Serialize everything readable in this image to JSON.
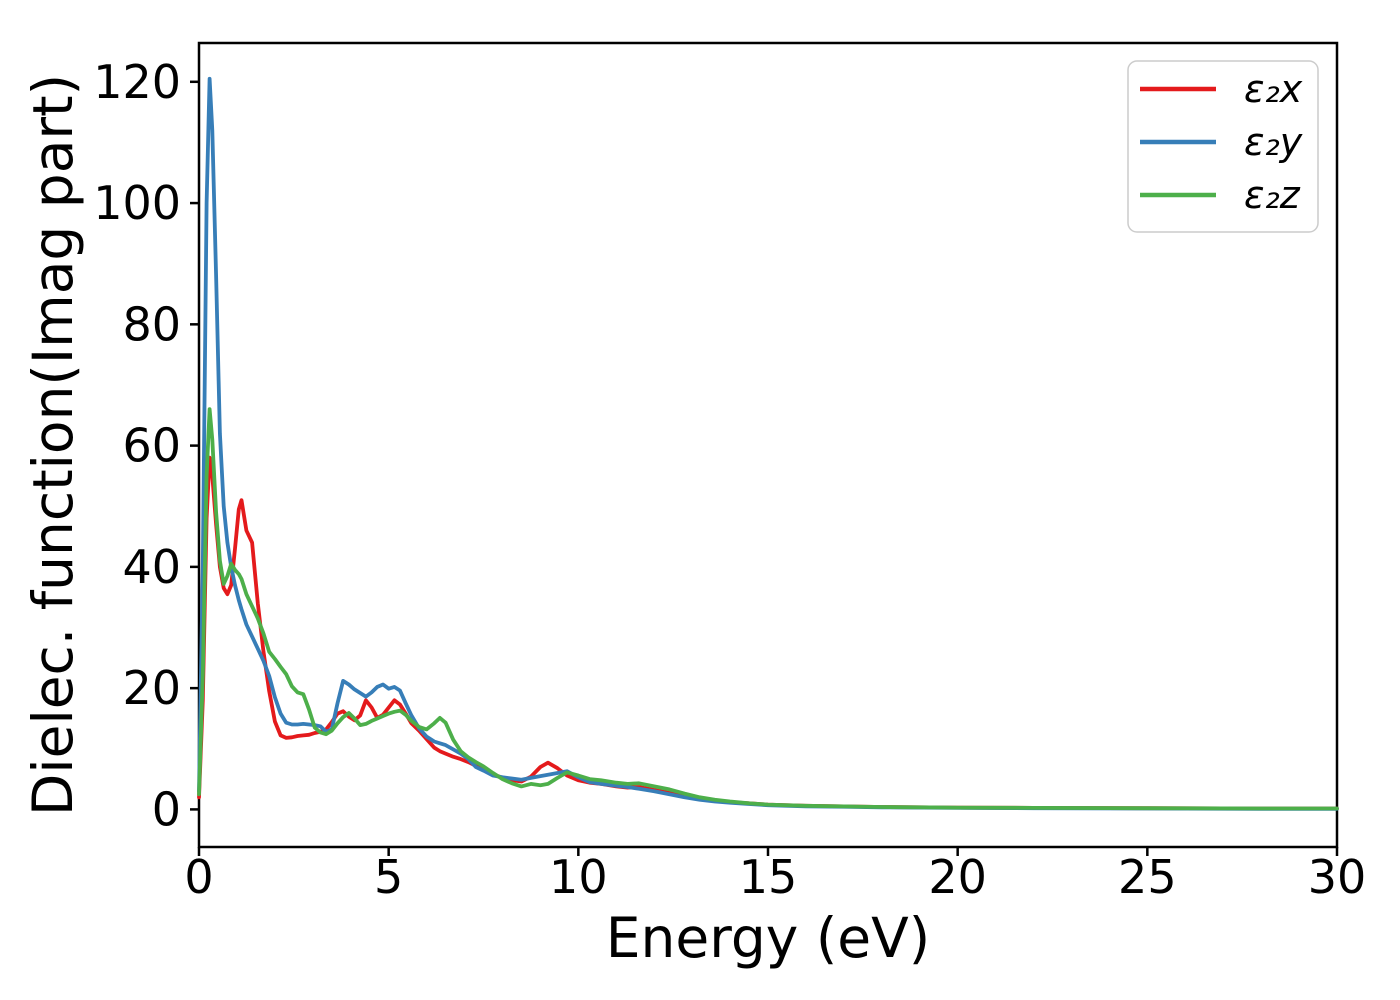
{
  "figure": {
    "background_color": "#ffffff",
    "frame_color": "#000000"
  },
  "chart_data": {
    "type": "line",
    "xlabel": "Energy (eV)",
    "ylabel": "Dielec. function(Imag part)",
    "xlim": [
      0,
      30
    ],
    "ylim": [
      -6.2,
      126.4
    ],
    "xticks": [
      0,
      5,
      10,
      15,
      20,
      25,
      30
    ],
    "yticks": [
      0,
      20,
      40,
      60,
      80,
      100,
      120
    ],
    "grid": false,
    "legend": {
      "position": "upper right"
    },
    "x": [
      0,
      0.1,
      0.2,
      0.28,
      0.35,
      0.45,
      0.55,
      0.65,
      0.75,
      0.85,
      0.95,
      1.05,
      1.12,
      1.25,
      1.4,
      1.55,
      1.7,
      1.85,
      2.0,
      2.15,
      2.3,
      2.45,
      2.6,
      2.75,
      2.9,
      3.05,
      3.2,
      3.35,
      3.5,
      3.65,
      3.8,
      3.95,
      4.1,
      4.25,
      4.4,
      4.55,
      4.7,
      4.85,
      5.0,
      5.15,
      5.3,
      5.45,
      5.6,
      5.8,
      6.0,
      6.2,
      6.35,
      6.5,
      6.7,
      6.9,
      7.1,
      7.3,
      7.5,
      7.75,
      8.0,
      8.25,
      8.5,
      8.75,
      9.0,
      9.2,
      9.45,
      9.7,
      10.0,
      10.3,
      10.6,
      11.0,
      11.3,
      11.6,
      12.0,
      12.4,
      12.8,
      13.2,
      13.6,
      14.0,
      14.5,
      15.0,
      16.0,
      17.0,
      18.0,
      20.0,
      22.0,
      25.0,
      28.0,
      30.0
    ],
    "series": [
      {
        "name": "eps2x",
        "label": "ε₂x",
        "color": "#e41a1c",
        "values": [
          2,
          18,
          48,
          58,
          55,
          47,
          40,
          36.5,
          35.5,
          37,
          43,
          49.5,
          51,
          46,
          44,
          34,
          26,
          19.5,
          14.5,
          12.2,
          11.8,
          11.9,
          12.1,
          12.2,
          12.3,
          12.6,
          12.8,
          13.2,
          14.4,
          15.8,
          16.2,
          15.3,
          14.7,
          15.5,
          18,
          16.8,
          15.1,
          15.6,
          16.8,
          18,
          17.3,
          15.8,
          14.2,
          13,
          11.6,
          10.2,
          9.6,
          9.2,
          8.7,
          8.3,
          7.8,
          7.2,
          6.8,
          5.8,
          5.2,
          4.8,
          4.6,
          5.4,
          7,
          7.7,
          6.8,
          5.6,
          4.8,
          4.4,
          4.2,
          3.8,
          3.6,
          3.7,
          3.2,
          2.7,
          2.2,
          1.8,
          1.5,
          1.2,
          1,
          0.8,
          0.6,
          0.5,
          0.4,
          0.3,
          0.25,
          0.2,
          0.15,
          0.15
        ]
      },
      {
        "name": "eps2y",
        "label": "ε₂y",
        "color": "#377eb8",
        "values": [
          3,
          40,
          100,
          120.5,
          112,
          88,
          62,
          50,
          44,
          40,
          37,
          34.5,
          33,
          30.5,
          28.5,
          26.5,
          24.5,
          22,
          18.5,
          15.8,
          14.3,
          14,
          14,
          14.1,
          14,
          13.9,
          13.7,
          12.8,
          13.2,
          17.5,
          21.2,
          20.6,
          19.8,
          19.2,
          18.6,
          19.3,
          20.2,
          20.6,
          19.9,
          20.2,
          19.6,
          17.5,
          15.5,
          13.4,
          12,
          11.2,
          10.9,
          10.6,
          9.9,
          9.2,
          8.3,
          7,
          6.4,
          5.6,
          5.3,
          5.1,
          4.9,
          5.2,
          5.5,
          5.7,
          6,
          6.3,
          5.3,
          4.5,
          4.2,
          3.9,
          3.7,
          3.4,
          3,
          2.5,
          2,
          1.6,
          1.3,
          1.1,
          0.9,
          0.7,
          0.5,
          0.45,
          0.35,
          0.25,
          0.2,
          0.15,
          0.1,
          0.1
        ]
      },
      {
        "name": "eps2z",
        "label": "ε₂z",
        "color": "#4daf4a",
        "values": [
          2.5,
          22,
          55,
          66,
          61,
          49,
          41,
          37.2,
          38.5,
          40.5,
          39.5,
          38.8,
          38,
          35.5,
          33.5,
          31.5,
          29,
          26,
          24.8,
          23.5,
          22.3,
          20.3,
          19.3,
          19,
          16.5,
          13.5,
          12.7,
          12.4,
          13,
          14.2,
          15.2,
          15.9,
          15,
          13.9,
          14.1,
          14.6,
          15,
          15.4,
          15.8,
          16.1,
          16.3,
          15.6,
          14.6,
          13.6,
          13.2,
          14.2,
          15.1,
          14.3,
          11.5,
          9.6,
          8.6,
          7.8,
          7.1,
          6,
          5,
          4.3,
          3.8,
          4.2,
          4,
          4.2,
          5.2,
          6.1,
          5.6,
          5,
          4.8,
          4.4,
          4.2,
          4.3,
          3.8,
          3.3,
          2.6,
          2,
          1.6,
          1.3,
          1,
          0.8,
          0.6,
          0.5,
          0.4,
          0.3,
          0.25,
          0.2,
          0.15,
          0.15
        ]
      }
    ]
  }
}
